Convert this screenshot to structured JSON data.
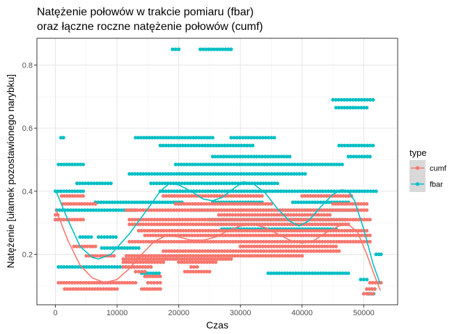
{
  "chart_data": {
    "type": "scatter",
    "title_line1": "Natężenie połowów w trakcie pomiaru (fbar)",
    "title_line2": "oraz łączne roczne natężenie połowów (cumf)",
    "xlabel": "Czas",
    "ylabel": "Natężenie [ułamek pozostawionego narybku]",
    "xlim": [
      -3000,
      55500
    ],
    "ylim": [
      0.04,
      0.885
    ],
    "x_ticks": [
      0,
      10000,
      20000,
      30000,
      40000,
      50000
    ],
    "x_tick_labels": [
      "0",
      "10000",
      "20000",
      "30000",
      "40000",
      "50000"
    ],
    "y_ticks": [
      0.2,
      0.4,
      0.6,
      0.8
    ],
    "y_tick_labels": [
      "0.2",
      "0.4",
      "0.6",
      "0.8"
    ],
    "grid": true,
    "legend": {
      "title": "type",
      "position": "right",
      "entries": [
        {
          "name": "cumf",
          "color": "#F8766D"
        },
        {
          "name": "fbar",
          "color": "#00BFC4"
        }
      ]
    },
    "series": [
      {
        "name": "fbar",
        "color": "#00BFC4",
        "bands": [
          {
            "y": 0.85,
            "segments": [
              [
                19000,
                20000
              ],
              [
                23500,
                28500
              ]
            ]
          },
          {
            "y": 0.69,
            "segments": [
              [
                45000,
                51500
              ]
            ]
          },
          {
            "y": 0.665,
            "segments": [
              [
                45500,
                50500
              ]
            ]
          },
          {
            "y": 0.57,
            "segments": [
              [
                900,
                1300
              ],
              [
                13000,
                25500
              ],
              [
                28500,
                35500
              ]
            ]
          },
          {
            "y": 0.545,
            "segments": [
              [
                17000,
                32000
              ],
              [
                46000,
                51500
              ]
            ]
          },
          {
            "y": 0.51,
            "segments": [
              [
                25500,
                38000
              ],
              [
                47500,
                51000
              ]
            ]
          },
          {
            "y": 0.485,
            "segments": [
              [
                500,
                4500
              ],
              [
                19500,
                46500
              ]
            ]
          },
          {
            "y": 0.455,
            "segments": [
              [
                12000,
                40500
              ]
            ]
          },
          {
            "y": 0.425,
            "segments": [
              [
                3500,
                9000
              ],
              [
                15500,
                36000
              ]
            ]
          },
          {
            "y": 0.4,
            "segments": [
              [
                0,
                4500
              ],
              [
                17000,
                52000
              ]
            ]
          },
          {
            "y": 0.365,
            "segments": [
              [
                6500,
                20500
              ],
              [
                25500,
                33500
              ],
              [
                38500,
                47500
              ]
            ]
          },
          {
            "y": 0.34,
            "segments": [
              [
                200,
                13000
              ],
              [
                22000,
                49000
              ]
            ]
          },
          {
            "y": 0.31,
            "segments": [
              [
                0,
                400
              ],
              [
                25000,
                47000
              ]
            ]
          },
          {
            "y": 0.28,
            "segments": [
              [
                27000,
                45500
              ]
            ]
          },
          {
            "y": 0.255,
            "segments": [
              [
                4000,
                5800
              ],
              [
                7000,
                9800
              ]
            ]
          },
          {
            "y": 0.22,
            "segments": [
              [
                7500,
                13500
              ]
            ]
          },
          {
            "y": 0.2,
            "segments": [
              [
                52000,
                52800
              ]
            ]
          },
          {
            "y": 0.16,
            "segments": [
              [
                500,
                15500
              ]
            ]
          },
          {
            "y": 0.14,
            "segments": [
              [
                14000,
                16800
              ],
              [
                34500,
                47500
              ]
            ]
          },
          {
            "y": 0.12,
            "segments": [
              [
                49500,
                50500
              ]
            ]
          },
          {
            "y": 0.09,
            "segments": [
              [
                50500,
                51800
              ]
            ]
          },
          {
            "y": 0.075,
            "segments": [
              [
                50800,
                51600
              ]
            ]
          }
        ],
        "smooth": [
          [
            0,
            0.405
          ],
          [
            2000,
            0.31
          ],
          [
            4000,
            0.225
          ],
          [
            6000,
            0.19
          ],
          [
            7000,
            0.185
          ],
          [
            9000,
            0.2
          ],
          [
            12000,
            0.265
          ],
          [
            15000,
            0.345
          ],
          [
            17000,
            0.4
          ],
          [
            18500,
            0.425
          ],
          [
            20000,
            0.42
          ],
          [
            22000,
            0.4
          ],
          [
            24000,
            0.375
          ],
          [
            25500,
            0.37
          ],
          [
            27000,
            0.38
          ],
          [
            29000,
            0.41
          ],
          [
            30500,
            0.43
          ],
          [
            32000,
            0.425
          ],
          [
            34000,
            0.395
          ],
          [
            36000,
            0.345
          ],
          [
            38000,
            0.305
          ],
          [
            39500,
            0.29
          ],
          [
            41000,
            0.305
          ],
          [
            43000,
            0.35
          ],
          [
            45000,
            0.39
          ],
          [
            46500,
            0.405
          ],
          [
            47500,
            0.4
          ],
          [
            48500,
            0.37
          ],
          [
            50000,
            0.28
          ],
          [
            51500,
            0.17
          ],
          [
            52700,
            0.105
          ]
        ]
      },
      {
        "name": "cumf",
        "color": "#F8766D",
        "bands": [
          {
            "y": 0.385,
            "segments": [
              [
                1000,
                4500
              ],
              [
                17500,
                33500
              ],
              [
                40000,
                48000
              ]
            ]
          },
          {
            "y": 0.36,
            "segments": [
              [
                1200,
                6500
              ],
              [
                19500,
                35000
              ],
              [
                45000,
                50500
              ]
            ]
          },
          {
            "y": 0.34,
            "segments": [
              [
                11500,
                50500
              ]
            ]
          },
          {
            "y": 0.325,
            "segments": [
              [
                0,
                400
              ],
              [
                26500,
                44500
              ]
            ]
          },
          {
            "y": 0.31,
            "segments": [
              [
                0,
                4500
              ],
              [
                12000,
                51000
              ]
            ]
          },
          {
            "y": 0.295,
            "segments": [
              [
                12000,
                47500
              ]
            ]
          },
          {
            "y": 0.275,
            "segments": [
              [
                13500,
                50500
              ]
            ]
          },
          {
            "y": 0.26,
            "segments": [
              [
                14500,
                51000
              ]
            ]
          },
          {
            "y": 0.24,
            "segments": [
              [
                12000,
                51000
              ]
            ]
          },
          {
            "y": 0.225,
            "segments": [
              [
                3000,
                6500
              ],
              [
                30000,
                45500
              ]
            ]
          },
          {
            "y": 0.21,
            "segments": [
              [
                17500,
                46000
              ]
            ]
          },
          {
            "y": 0.195,
            "segments": [
              [
                5000,
                9500
              ],
              [
                11500,
                40000
              ]
            ]
          },
          {
            "y": 0.185,
            "segments": [
              [
                11000,
                28500
              ]
            ]
          },
          {
            "y": 0.175,
            "segments": [
              [
                11000,
                17500
              ],
              [
                20000,
                26000
              ]
            ]
          },
          {
            "y": 0.16,
            "segments": [
              [
                11000,
                15500
              ],
              [
                22000,
                23000
              ]
            ]
          },
          {
            "y": 0.145,
            "segments": [
              [
                13000,
                14500
              ],
              [
                21000,
                25000
              ]
            ]
          },
          {
            "y": 0.13,
            "segments": [
              [
                14500,
                17000
              ]
            ]
          },
          {
            "y": 0.11,
            "segments": [
              [
                500,
                13000
              ],
              [
                15000,
                17000
              ],
              [
                51000,
                52800
              ]
            ]
          },
          {
            "y": 0.09,
            "segments": [
              [
                1500,
                10000
              ],
              [
                14000,
                17000
              ],
              [
                50500,
                51800
              ]
            ]
          },
          {
            "y": 0.075,
            "segments": [
              [
                50000,
                51500
              ]
            ]
          }
        ],
        "smooth": [
          [
            0,
            0.345
          ],
          [
            2000,
            0.245
          ],
          [
            4000,
            0.165
          ],
          [
            6000,
            0.125
          ],
          [
            8000,
            0.11
          ],
          [
            10000,
            0.12
          ],
          [
            12000,
            0.155
          ],
          [
            14000,
            0.2
          ],
          [
            16000,
            0.24
          ],
          [
            18000,
            0.26
          ],
          [
            20000,
            0.255
          ],
          [
            22000,
            0.245
          ],
          [
            24000,
            0.245
          ],
          [
            26000,
            0.255
          ],
          [
            28000,
            0.275
          ],
          [
            30000,
            0.29
          ],
          [
            32000,
            0.295
          ],
          [
            34000,
            0.285
          ],
          [
            36000,
            0.265
          ],
          [
            38000,
            0.245
          ],
          [
            40000,
            0.235
          ],
          [
            42000,
            0.245
          ],
          [
            44000,
            0.27
          ],
          [
            46000,
            0.29
          ],
          [
            47500,
            0.295
          ],
          [
            49000,
            0.27
          ],
          [
            50500,
            0.2
          ],
          [
            51800,
            0.13
          ],
          [
            52700,
            0.085
          ]
        ]
      }
    ]
  }
}
